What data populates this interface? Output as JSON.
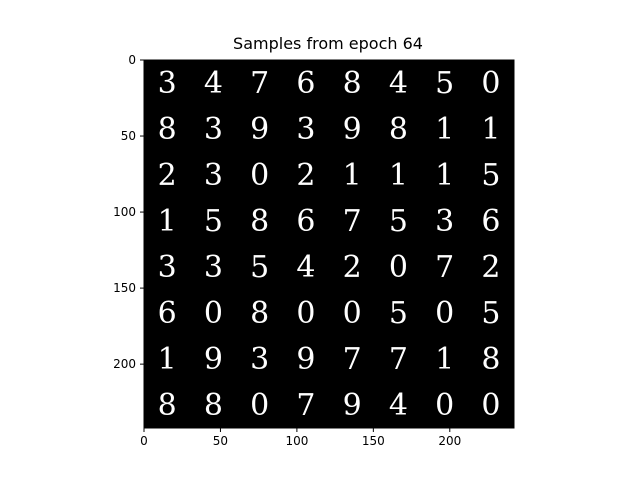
{
  "chart_data": {
    "type": "heatmap",
    "title": "Samples from epoch 64",
    "xlabel": "",
    "ylabel": "",
    "xlim": [
      0,
      242
    ],
    "ylim": [
      242,
      0
    ],
    "xticks": [
      0,
      50,
      100,
      150,
      200
    ],
    "yticks": [
      0,
      50,
      100,
      150,
      200
    ],
    "grid": false,
    "image": "8x8 grid of generated grayscale handwritten digit samples (white strokes on black)",
    "digits": [
      [
        "3",
        "4",
        "7",
        "6",
        "8",
        "4",
        "5",
        "0"
      ],
      [
        "8",
        "3",
        "9",
        "3",
        "9",
        "8",
        "1",
        "1"
      ],
      [
        "2",
        "3",
        "0",
        "2",
        "1",
        "1",
        "1",
        "5"
      ],
      [
        "1",
        "5",
        "8",
        "6",
        "7",
        "5",
        "3",
        "6"
      ],
      [
        "3",
        "3",
        "5",
        "4",
        "2",
        "0",
        "7",
        "2"
      ],
      [
        "6",
        "0",
        "8",
        "0",
        "0",
        "5",
        "0",
        "5"
      ],
      [
        "1",
        "9",
        "3",
        "9",
        "7",
        "7",
        "1",
        "8"
      ],
      [
        "8",
        "8",
        "0",
        "7",
        "9",
        "4",
        "0",
        "0"
      ]
    ]
  },
  "colors": {
    "background": "#000000",
    "stroke": "#ffffff",
    "axis": "#000000"
  }
}
